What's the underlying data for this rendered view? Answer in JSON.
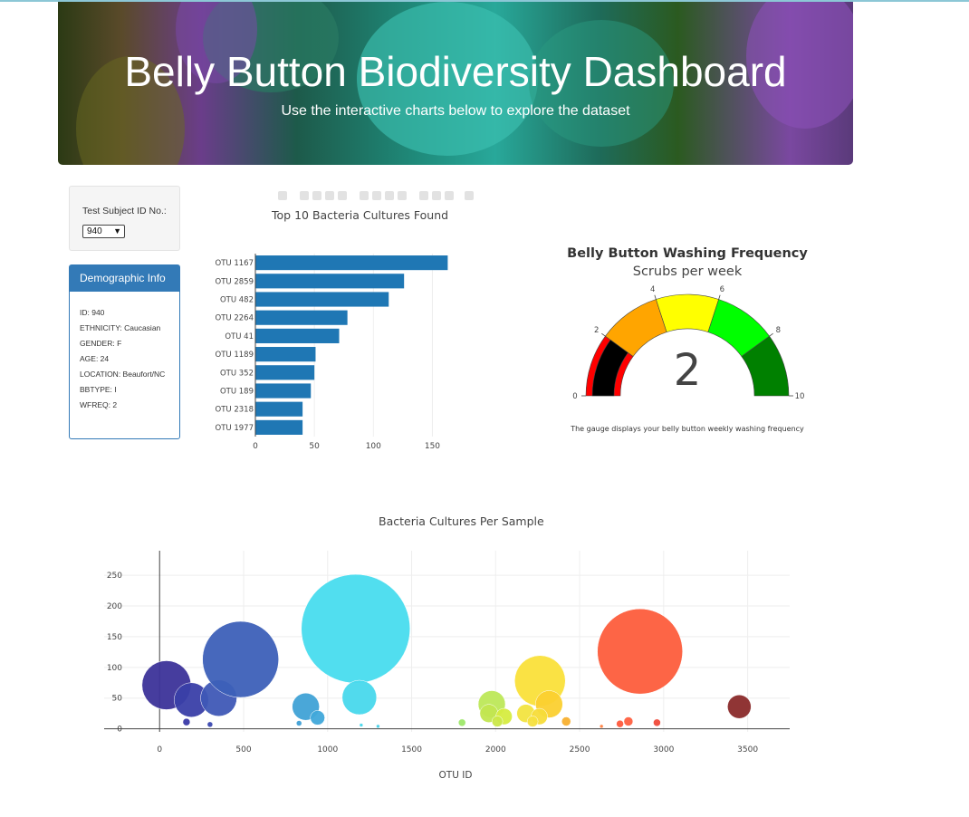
{
  "header": {
    "title": "Belly Button Biodiversity Dashboard",
    "subtitle": "Use the interactive charts below to explore the dataset"
  },
  "selector": {
    "label": "Test Subject ID No.:",
    "value": "940"
  },
  "demographics": {
    "heading": "Demographic Info",
    "rows": [
      "ID: 940",
      "ETHNICITY: Caucasian",
      "GENDER: F",
      "AGE: 24",
      "LOCATION: Beaufort/NC",
      "BBTYPE: I",
      "WFREQ: 2"
    ]
  },
  "colors": {
    "bar": "#1f77b4",
    "panel_primary": "#337ab7"
  },
  "chart_data": [
    {
      "type": "bar",
      "orientation": "horizontal",
      "title": "Top 10 Bacteria Cultures Found",
      "categories": [
        "OTU 1167",
        "OTU 2859",
        "OTU 482",
        "OTU 2264",
        "OTU 41",
        "OTU 1189",
        "OTU 352",
        "OTU 189",
        "OTU 2318",
        "OTU 1977"
      ],
      "values": [
        163,
        126,
        113,
        78,
        71,
        51,
        50,
        47,
        40,
        40
      ],
      "xlim": [
        0,
        165
      ],
      "xticks": [
        0,
        50,
        100,
        150
      ]
    },
    {
      "type": "gauge",
      "title": "Belly Button Washing Frequency",
      "subtitle": "Scrubs per week",
      "value": 2,
      "range": [
        0,
        10
      ],
      "ticks": [
        0,
        2,
        4,
        6,
        8,
        10
      ],
      "steps": [
        {
          "range": [
            0,
            2
          ],
          "color": "#ff0000"
        },
        {
          "range": [
            2,
            4
          ],
          "color": "#ffa500"
        },
        {
          "range": [
            4,
            6
          ],
          "color": "#ffff00"
        },
        {
          "range": [
            6,
            8
          ],
          "color": "#00ff00"
        },
        {
          "range": [
            8,
            10
          ],
          "color": "#008000"
        }
      ],
      "bar_color": "#000000",
      "note": "The gauge displays your belly button weekly washing frequency"
    },
    {
      "type": "scatter",
      "mode": "bubble",
      "title": "Bacteria Cultures Per Sample",
      "xlabel": "OTU ID",
      "xlim": [
        -330,
        3750
      ],
      "ylim": [
        -5,
        290
      ],
      "xticks": [
        0,
        500,
        1000,
        1500,
        2000,
        2500,
        3000,
        3500
      ],
      "yticks": [
        0,
        50,
        100,
        150,
        200,
        250
      ],
      "points": [
        {
          "x": 41,
          "y": 71,
          "r": 27,
          "c": "#3c3399"
        },
        {
          "x": 189,
          "y": 47,
          "r": 19,
          "c": "#3a3fa8"
        },
        {
          "x": 352,
          "y": 50,
          "r": 20,
          "c": "#3f58b6"
        },
        {
          "x": 482,
          "y": 113,
          "r": 42,
          "c": "#3d60b8"
        },
        {
          "x": 870,
          "y": 36,
          "r": 15,
          "c": "#40a2d6"
        },
        {
          "x": 940,
          "y": 18,
          "r": 8,
          "c": "#40a8da"
        },
        {
          "x": 1167,
          "y": 163,
          "r": 60,
          "c": "#48dcee"
        },
        {
          "x": 1189,
          "y": 51,
          "r": 19,
          "c": "#48d8ec"
        },
        {
          "x": 1977,
          "y": 40,
          "r": 15,
          "c": "#bde858"
        },
        {
          "x": 1960,
          "y": 25,
          "r": 10,
          "c": "#c2e650"
        },
        {
          "x": 2050,
          "y": 20,
          "r": 9,
          "c": "#d6ec40"
        },
        {
          "x": 2010,
          "y": 12,
          "r": 6,
          "c": "#cbe848"
        },
        {
          "x": 2264,
          "y": 78,
          "r": 28,
          "c": "#fae03a"
        },
        {
          "x": 2318,
          "y": 40,
          "r": 15,
          "c": "#fbd030"
        },
        {
          "x": 2180,
          "y": 25,
          "r": 10,
          "c": "#f2e440"
        },
        {
          "x": 2260,
          "y": 20,
          "r": 9,
          "c": "#f7dc3a"
        },
        {
          "x": 2220,
          "y": 12,
          "r": 6,
          "c": "#f5e040"
        },
        {
          "x": 2420,
          "y": 12,
          "r": 5,
          "c": "#f8b030"
        },
        {
          "x": 2859,
          "y": 126,
          "r": 47,
          "c": "#fd5d3c"
        },
        {
          "x": 2790,
          "y": 12,
          "r": 5,
          "c": "#ff6040"
        },
        {
          "x": 2740,
          "y": 8,
          "r": 4,
          "c": "#ff5a3c"
        },
        {
          "x": 2960,
          "y": 10,
          "r": 4,
          "c": "#f04a3a"
        },
        {
          "x": 3450,
          "y": 36,
          "r": 13,
          "c": "#8a2a2a"
        },
        {
          "x": 160,
          "y": 11,
          "r": 4,
          "c": "#3a3aa8"
        },
        {
          "x": 300,
          "y": 7,
          "r": 3,
          "c": "#3a48b0"
        },
        {
          "x": 830,
          "y": 9,
          "r": 3,
          "c": "#40a0d6"
        },
        {
          "x": 1800,
          "y": 10,
          "r": 4,
          "c": "#9ee86a"
        },
        {
          "x": 1200,
          "y": 6,
          "r": 2,
          "c": "#48d8ec"
        },
        {
          "x": 1300,
          "y": 4,
          "r": 2,
          "c": "#48d0e8"
        },
        {
          "x": 2630,
          "y": 4,
          "r": 2,
          "c": "#ff8040"
        }
      ]
    }
  ]
}
